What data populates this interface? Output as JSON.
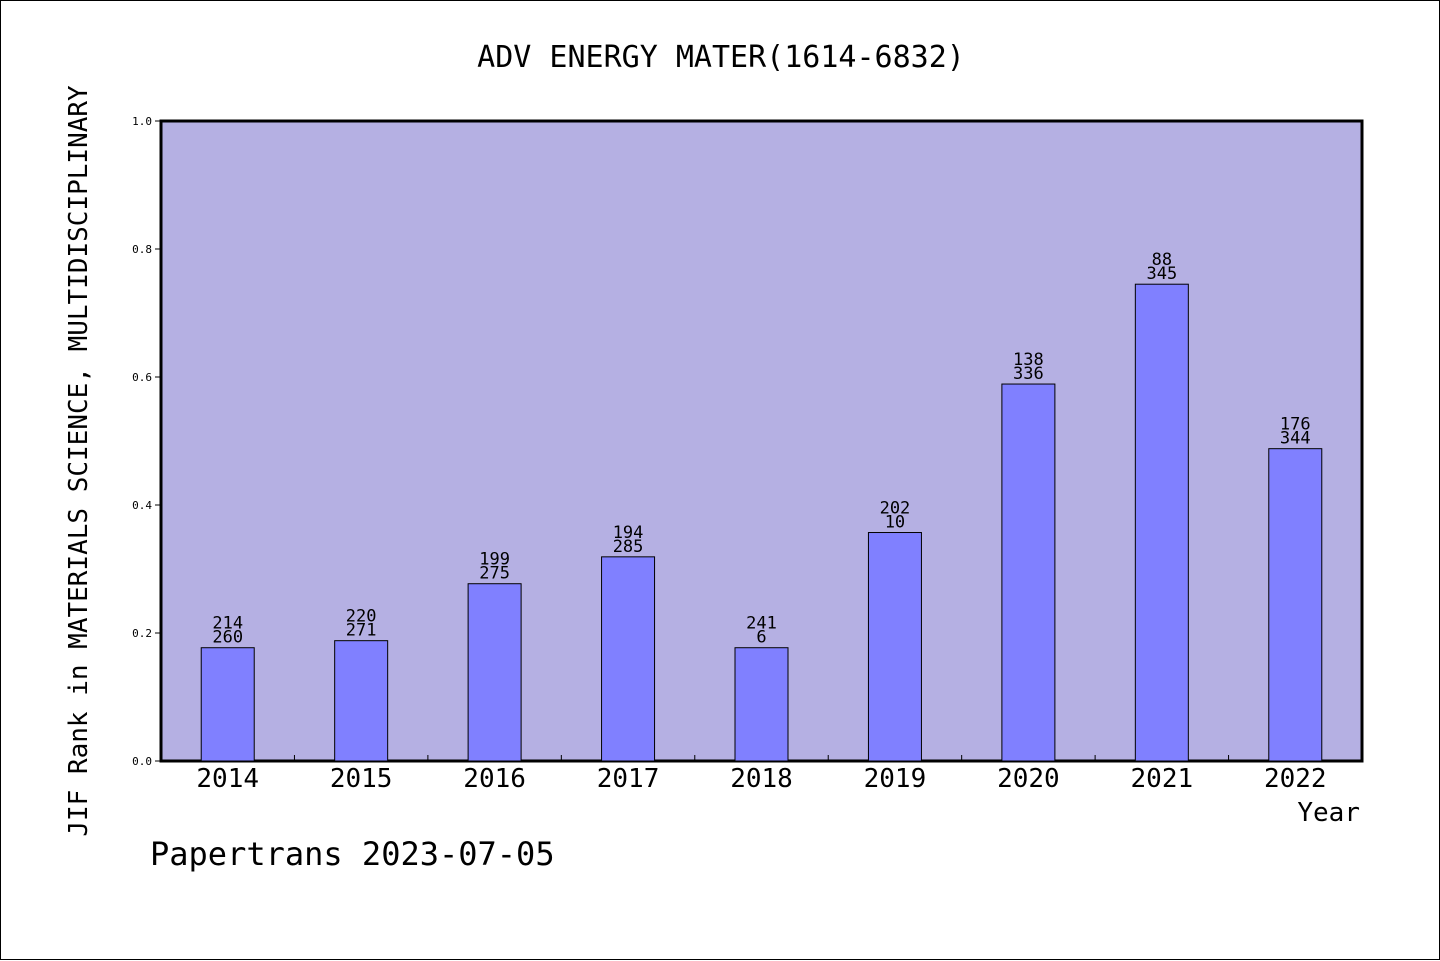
{
  "chart_data": {
    "type": "bar",
    "title": "ADV ENERGY MATER(1614-6832)",
    "xlabel": "Year",
    "ylabel": "JIF Rank in MATERIALS SCIENCE, MULTIDISCIPLINARY",
    "ylim": [
      0,
      1.0
    ],
    "yticks": [
      "0.0",
      "0.2",
      "0.4",
      "0.6",
      "0.8",
      "1.0"
    ],
    "categories": [
      "2014",
      "2015",
      "2016",
      "2017",
      "2018",
      "2019",
      "2020",
      "2021",
      "2022"
    ],
    "values": [
      0.177,
      0.188,
      0.277,
      0.319,
      0.177,
      0.357,
      0.589,
      0.745,
      0.488
    ],
    "labels_top": [
      "214",
      "220",
      "199",
      "194",
      "241",
      "202",
      "138",
      "88",
      "176"
    ],
    "labels_bottom": [
      "260",
      "271",
      "275",
      "285",
      "6",
      "10",
      "336",
      "345",
      "344"
    ],
    "grid": false,
    "colors": {
      "plot_background": "#b5b0e3",
      "bar_fill": "#8080ff",
      "bar_stroke": "#000000"
    }
  },
  "footer": {
    "credit": "Papertrans 2023-07-05"
  }
}
